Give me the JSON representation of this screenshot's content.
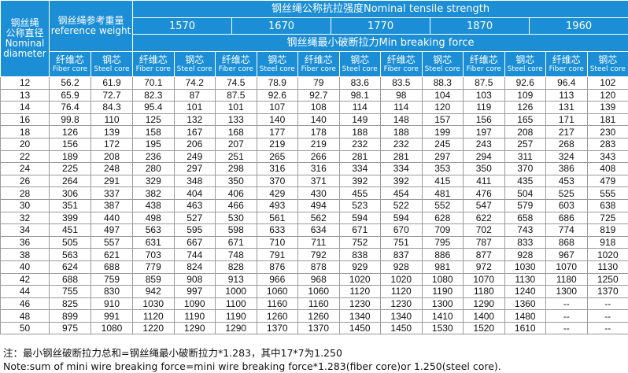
{
  "header": {
    "diameter": [
      "钢丝绳",
      "公称直径",
      "Nominal",
      "diameter"
    ],
    "weight": [
      "钢丝绳参考重量",
      "reference weight"
    ],
    "strength_title": "钢丝绳公称抗拉强度Nominal tensile strength",
    "grades": [
      "1570",
      "1670",
      "1770",
      "1870",
      "1960"
    ],
    "min_force": "钢丝绳最小破断拉力Min breaking force",
    "fiber": [
      "纤维芯",
      "Fiber core"
    ],
    "steel": [
      "钢芯",
      "Steel core"
    ]
  },
  "rows": [
    [
      "12",
      "56.2",
      "61.9",
      "70.1",
      "74.2",
      "74.5",
      "78.9",
      "79",
      "83.6",
      "83.5",
      "88.3",
      "87.5",
      "92.6",
      "96.4",
      "102"
    ],
    [
      "13",
      "65.9",
      "72.7",
      "82.3",
      "87",
      "87.5",
      "92.6",
      "92.7",
      "98.1",
      "98",
      "104",
      "103",
      "109",
      "113",
      "120"
    ],
    [
      "14",
      "76.4",
      "84.3",
      "95.4",
      "101",
      "101",
      "107",
      "108",
      "114",
      "114",
      "120",
      "119",
      "126",
      "131",
      "139"
    ],
    [
      "16",
      "99.8",
      "110",
      "125",
      "132",
      "133",
      "140",
      "140",
      "149",
      "148",
      "157",
      "156",
      "165",
      "171",
      "181"
    ],
    [
      "18",
      "126",
      "139",
      "158",
      "167",
      "168",
      "177",
      "178",
      "188",
      "188",
      "199",
      "197",
      "208",
      "217",
      "230"
    ],
    [
      "20",
      "156",
      "172",
      "195",
      "206",
      "207",
      "219",
      "219",
      "232",
      "232",
      "245",
      "243",
      "257",
      "268",
      "283"
    ],
    [
      "22",
      "189",
      "208",
      "236",
      "249",
      "251",
      "265",
      "266",
      "281",
      "281",
      "297",
      "294",
      "311",
      "324",
      "343"
    ],
    [
      "24",
      "225",
      "248",
      "280",
      "297",
      "298",
      "316",
      "316",
      "334",
      "334",
      "353",
      "350",
      "370",
      "386",
      "408"
    ],
    [
      "26",
      "264",
      "291",
      "329",
      "348",
      "350",
      "370",
      "371",
      "392",
      "392",
      "415",
      "411",
      "435",
      "453",
      "479"
    ],
    [
      "28",
      "306",
      "337",
      "382",
      "404",
      "406",
      "429",
      "430",
      "455",
      "454",
      "481",
      "476",
      "504",
      "525",
      "555"
    ],
    [
      "30",
      "351",
      "387",
      "438",
      "463",
      "466",
      "493",
      "494",
      "523",
      "522",
      "552",
      "547",
      "579",
      "603",
      "638"
    ],
    [
      "32",
      "399",
      "440",
      "498",
      "527",
      "530",
      "561",
      "562",
      "594",
      "594",
      "628",
      "622",
      "658",
      "686",
      "725"
    ],
    [
      "34",
      "451",
      "497",
      "563",
      "595",
      "598",
      "633",
      "634",
      "671",
      "670",
      "709",
      "702",
      "743",
      "774",
      "819"
    ],
    [
      "36",
      "505",
      "557",
      "631",
      "667",
      "671",
      "710",
      "711",
      "752",
      "751",
      "795",
      "787",
      "833",
      "868",
      "918"
    ],
    [
      "38",
      "563",
      "621",
      "703",
      "744",
      "748",
      "791",
      "792",
      "838",
      "837",
      "886",
      "877",
      "928",
      "967",
      "1020"
    ],
    [
      "40",
      "624",
      "688",
      "779",
      "824",
      "828",
      "876",
      "878",
      "929",
      "928",
      "981",
      "972",
      "1030",
      "1070",
      "1130"
    ],
    [
      "42",
      "688",
      "759",
      "859",
      "908",
      "913",
      "966",
      "968",
      "1020",
      "1020",
      "1080",
      "1070",
      "1130",
      "1180",
      "1250"
    ],
    [
      "44",
      "755",
      "830",
      "942",
      "997",
      "1000",
      "1060",
      "1060",
      "1120",
      "1120",
      "1190",
      "1180",
      "1240",
      "1300",
      "1370"
    ],
    [
      "46",
      "825",
      "910",
      "1030",
      "1090",
      "1100",
      "1160",
      "1160",
      "1230",
      "1230",
      "1300",
      "1290",
      "1360",
      "--",
      "--"
    ],
    [
      "48",
      "899",
      "991",
      "1120",
      "1190",
      "1190",
      "1260",
      "1260",
      "1340",
      "1340",
      "1410",
      "1400",
      "1480",
      "--",
      "--"
    ],
    [
      "50",
      "975",
      "1080",
      "1220",
      "1290",
      "1290",
      "1370",
      "1370",
      "1450",
      "1450",
      "1530",
      "1520",
      "1610",
      "--",
      "--"
    ]
  ],
  "notes": [
    "注：最小钢丝破断拉力总和=钢丝绳最小破断拉力*1.283，其中17*7为1.250",
    "Note:sum of mini wire breaking force=mini wire breaking force*1.283(fiber core)or 1.250(steel core)."
  ]
}
